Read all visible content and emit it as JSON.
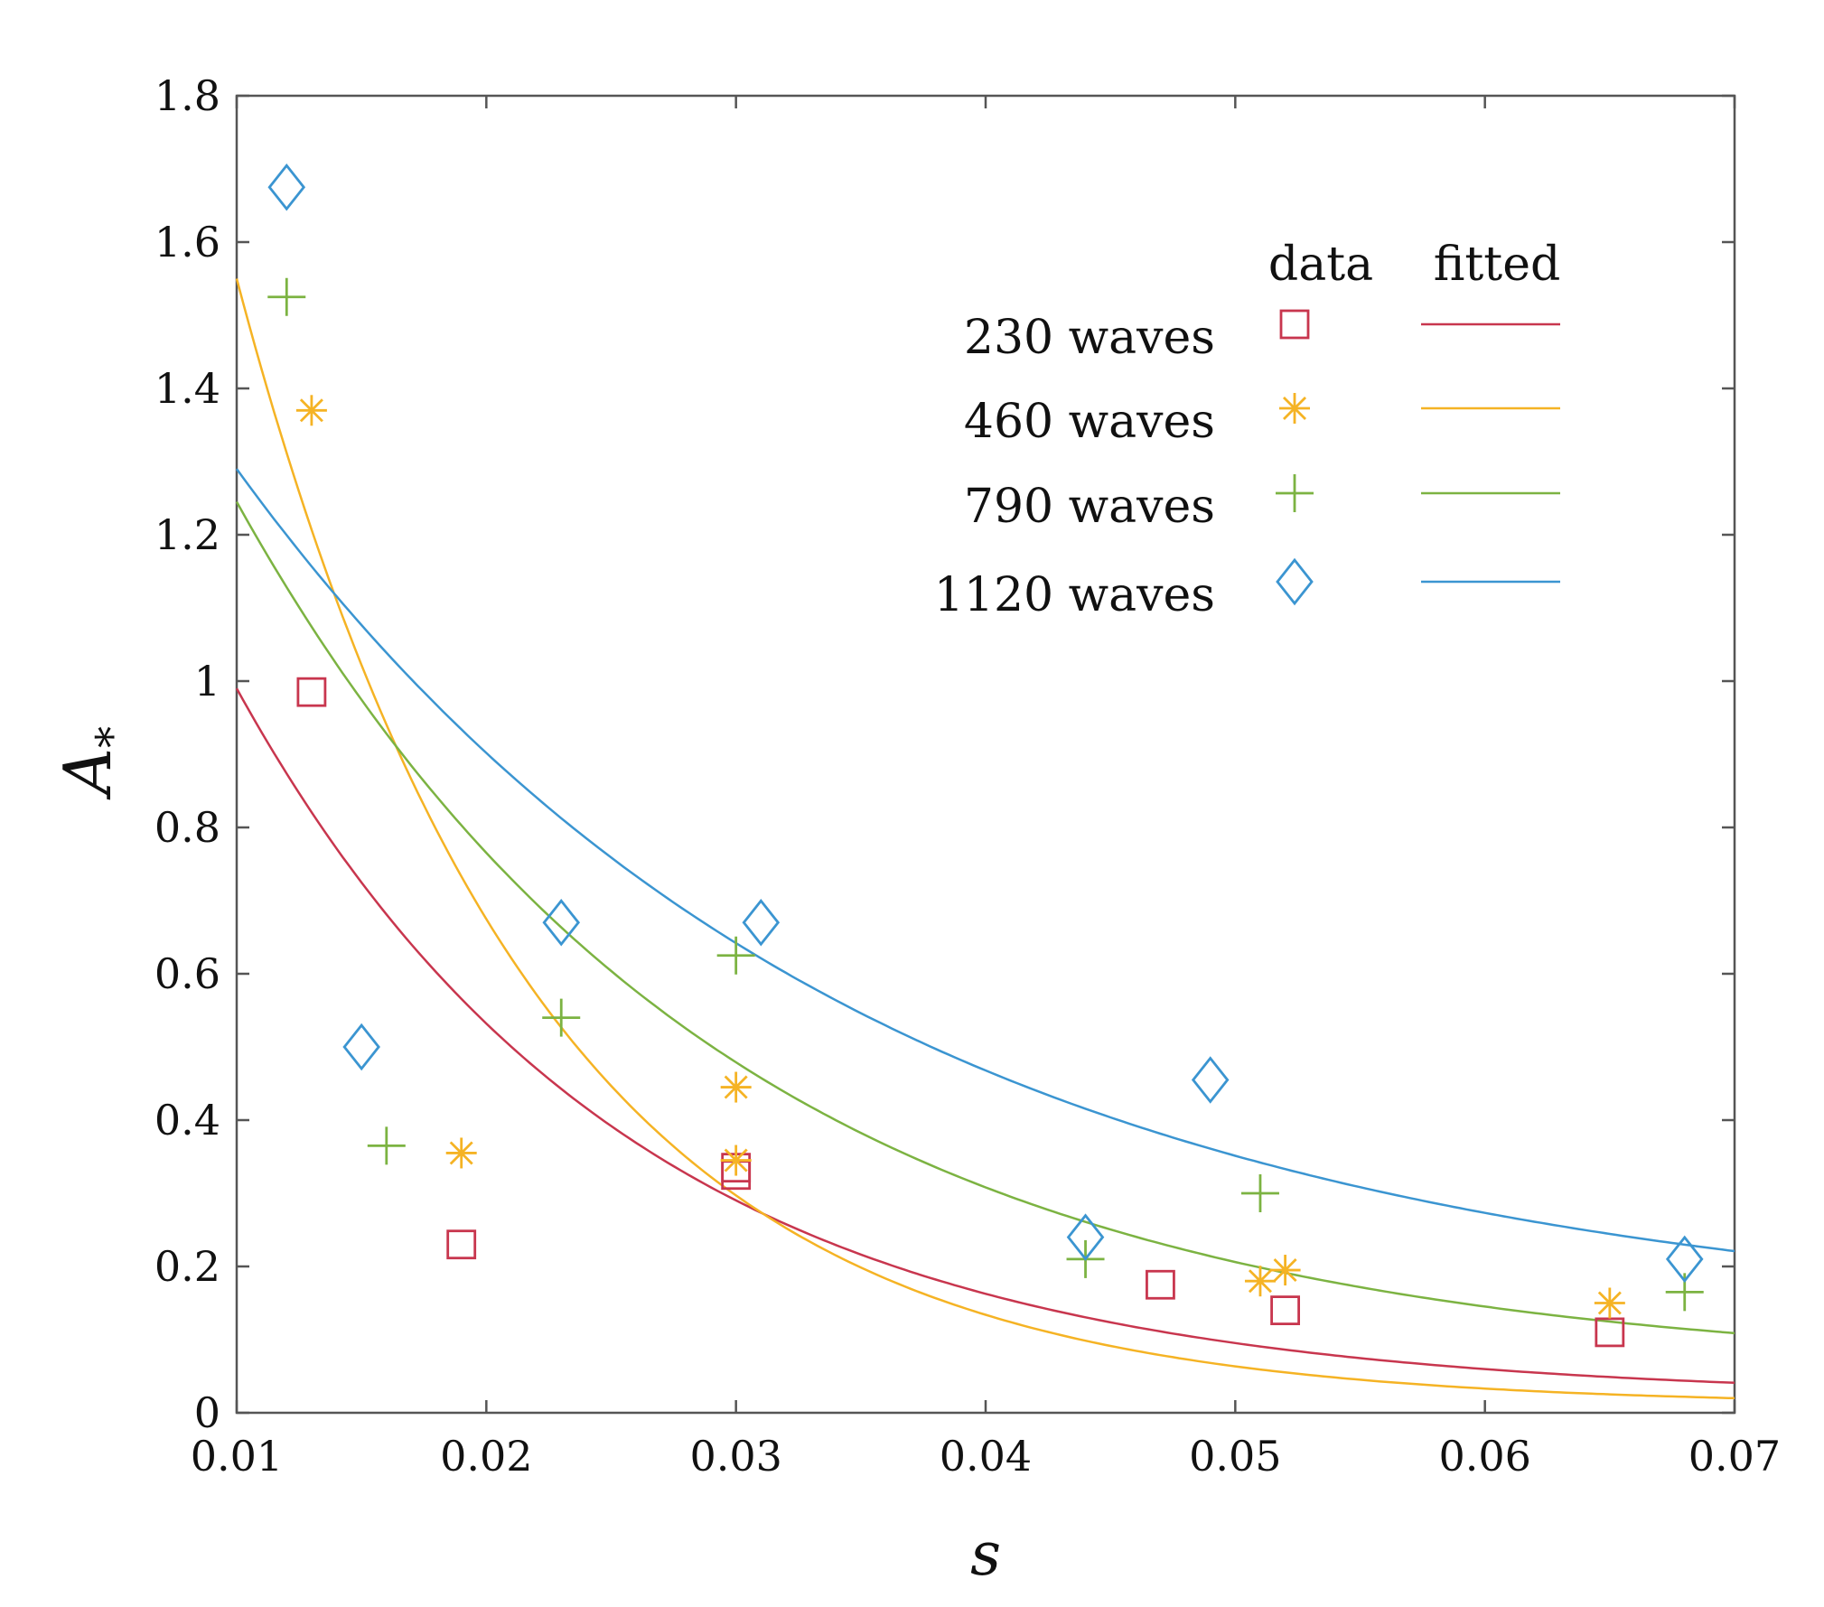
{
  "chart_data": {
    "type": "scatter",
    "xlabel": "s",
    "ylabel_main": "A",
    "ylabel_sub": "*",
    "xlim": [
      0.01,
      0.07
    ],
    "ylim": [
      0,
      1.8
    ],
    "xticks": [
      0.01,
      0.02,
      0.03,
      0.04,
      0.05,
      0.06,
      0.07
    ],
    "xtick_labels": [
      "0.01",
      "0.02",
      "0.03",
      "0.04",
      "0.05",
      "0.06",
      "0.07"
    ],
    "yticks": [
      0,
      0.2,
      0.4,
      0.6,
      0.8,
      1.0,
      1.2,
      1.4,
      1.6,
      1.8
    ],
    "ytick_labels": [
      "0",
      "0.2",
      "0.4",
      "0.6",
      "0.8",
      "1",
      "1.2",
      "1.4",
      "1.6",
      "1.8"
    ],
    "legend": {
      "position": "top-right",
      "header_data": "data",
      "header_fitted": "fitted"
    },
    "series": [
      {
        "name": "230 waves",
        "marker": "square",
        "color": "#c8364e",
        "points": [
          [
            0.013,
            0.985
          ],
          [
            0.019,
            0.23
          ],
          [
            0.03,
            0.325
          ],
          [
            0.03,
            0.335
          ],
          [
            0.047,
            0.175
          ],
          [
            0.052,
            0.14
          ],
          [
            0.065,
            0.11
          ]
        ],
        "fit": {
          "a": 0.99,
          "b": 0.02,
          "k": 63.9
        }
      },
      {
        "name": "460 waves",
        "marker": "asterisk",
        "color": "#f5b324",
        "points": [
          [
            0.013,
            1.37
          ],
          [
            0.019,
            0.355
          ],
          [
            0.03,
            0.445
          ],
          [
            0.03,
            0.345
          ],
          [
            0.051,
            0.18
          ],
          [
            0.052,
            0.195
          ],
          [
            0.065,
            0.15
          ]
        ],
        "fit": {
          "a": 1.55,
          "b": 0.01,
          "k": 84.0
        }
      },
      {
        "name": "790 waves",
        "marker": "plus",
        "color": "#7cb342",
        "points": [
          [
            0.012,
            1.525
          ],
          [
            0.016,
            0.365
          ],
          [
            0.023,
            0.54
          ],
          [
            0.03,
            0.625
          ],
          [
            0.044,
            0.21
          ],
          [
            0.051,
            0.3
          ],
          [
            0.068,
            0.165
          ]
        ],
        "fit": {
          "a": 1.245,
          "b": 0.055,
          "k": 51.6
        }
      },
      {
        "name": "1120 waves",
        "marker": "diamond",
        "color": "#3b95d1",
        "points": [
          [
            0.012,
            1.675
          ],
          [
            0.015,
            0.5
          ],
          [
            0.023,
            0.67
          ],
          [
            0.031,
            0.67
          ],
          [
            0.044,
            0.24
          ],
          [
            0.049,
            0.455
          ],
          [
            0.068,
            0.21
          ]
        ],
        "fit": {
          "a": 1.29,
          "b": 0.115,
          "k": 40.1
        }
      }
    ]
  }
}
